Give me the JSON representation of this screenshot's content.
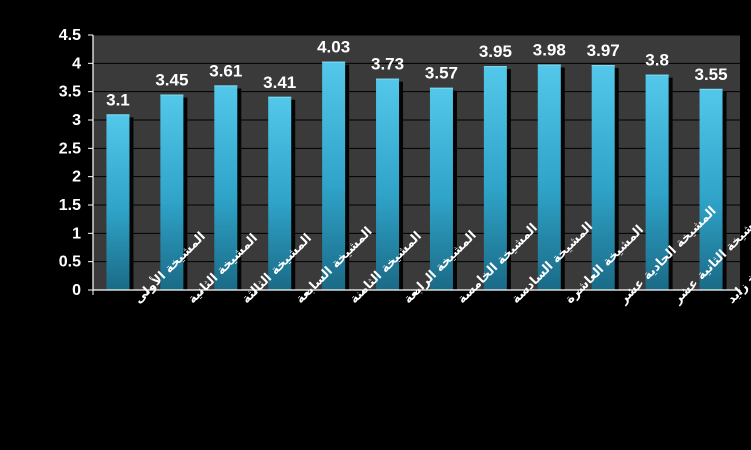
{
  "chart_data": {
    "type": "bar",
    "categories": [
      "المشيخة الأولى",
      "المشيخة الثانية",
      "المشيخة الثالثة",
      "المشيخة السابعة",
      "المشيخة الثامنة",
      "المشيخة الرابعة",
      "المشيخة الخامسة",
      "المشيخة السادسة",
      "المشيخة العاشرة",
      "المشيخة الحادية عشر",
      "المشيخة الثانية عشر",
      "اكتوبر والشيخ زايد"
    ],
    "values": [
      3.1,
      3.45,
      3.61,
      3.41,
      4.03,
      3.73,
      3.57,
      3.95,
      3.98,
      3.97,
      3.8,
      3.55
    ],
    "data_labels": [
      "3.1",
      "3.45",
      "3.61",
      "3.41",
      "4.03",
      "3.73",
      "3.57",
      "3.95",
      "3.98",
      "3.97",
      "3.8",
      "3.55"
    ],
    "yticks": [
      "0",
      "0.5",
      "1",
      "1.5",
      "2",
      "2.5",
      "3",
      "3.5",
      "4",
      "4.5"
    ],
    "ylim": [
      0,
      4.5
    ],
    "grid": true,
    "legend": "none",
    "title": "",
    "xlabel": "",
    "ylabel": ""
  },
  "colors": {
    "background": "#000000",
    "plot_area": "#3a3a3a",
    "bar_top": "#4fc3e6",
    "bar_bottom": "#1a6f8c",
    "bar_shadow": "#050505",
    "grid": "#000000",
    "text": "#ffffff"
  }
}
